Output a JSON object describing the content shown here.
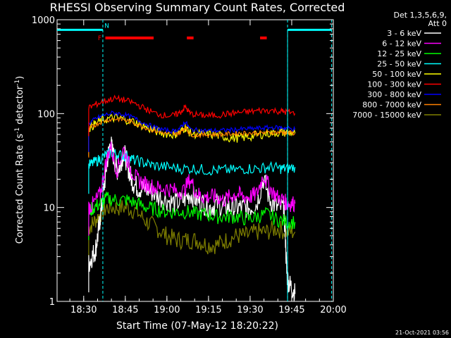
{
  "chart_data": {
    "type": "line",
    "title": "RHESSI Observing Summary Count Rates, Corrected",
    "xlabel": "Start Time (07-May-12 18:20:22)",
    "ylabel_parts": [
      "Corrected Count Rate (s",
      "-1",
      " detector",
      "-1",
      ")"
    ],
    "yscale": "log",
    "xlim": [
      18.34,
      20.0
    ],
    "ylim": [
      1,
      1000
    ],
    "x_ticks": [
      {
        "value": 18.5,
        "label": "18:30"
      },
      {
        "value": 18.75,
        "label": "18:45"
      },
      {
        "value": 19.0,
        "label": "19:00"
      },
      {
        "value": 19.25,
        "label": "19:15"
      },
      {
        "value": 19.5,
        "label": "19:30"
      },
      {
        "value": 19.75,
        "label": "19:45"
      },
      {
        "value": 20.0,
        "label": "20:00"
      }
    ],
    "y_ticks": [
      {
        "value": 1,
        "label": "1"
      },
      {
        "value": 10,
        "label": "10"
      },
      {
        "value": 100,
        "label": "100"
      },
      {
        "value": 1000,
        "label": "1000"
      }
    ],
    "legend_header": [
      "Det 1,3,5,6,9,",
      "Att 0"
    ],
    "annotations": {
      "flare_flag": "F",
      "night_flag": "N",
      "timestamp": "21-Oct-2021 03:56"
    },
    "day_night": {
      "color": "#00ffff",
      "level": 780,
      "segments": [
        [
          18.34,
          18.615
        ],
        [
          19.725,
          19.99
        ]
      ],
      "transitions": [
        18.615,
        19.725,
        19.99
      ]
    },
    "flare_bars": {
      "color": "#ff0000",
      "level": 640,
      "segments": [
        [
          18.63,
          18.92
        ],
        [
          19.12,
          19.16
        ],
        [
          19.56,
          19.6
        ]
      ]
    },
    "series": [
      {
        "name": "3 - 6 keV",
        "color": "#ffffff",
        "x": [
          18.53,
          18.55,
          18.57,
          18.585,
          18.6,
          18.62,
          18.64,
          18.66,
          18.68,
          18.7,
          18.72,
          18.74,
          18.76,
          18.78,
          18.8,
          18.83,
          18.86,
          18.9,
          18.95,
          19.0,
          19.05,
          19.1,
          19.14,
          19.18,
          19.22,
          19.26,
          19.3,
          19.34,
          19.38,
          19.42,
          19.46,
          19.5,
          19.54,
          19.58,
          19.62,
          19.66,
          19.7,
          19.71,
          19.72,
          19.73,
          19.75,
          19.77
        ],
        "y": [
          2.5,
          3,
          3.5,
          5,
          8,
          15,
          30,
          50,
          35,
          25,
          28,
          40,
          30,
          22,
          18,
          16,
          16,
          15,
          13,
          12,
          11,
          12,
          14,
          12,
          11,
          10,
          11,
          10,
          10,
          10,
          10,
          10,
          11,
          20,
          12,
          10,
          10,
          6,
          2,
          1.6,
          1.4,
          1.2
        ]
      },
      {
        "name": "6 - 12 keV",
        "color": "#ff00ff",
        "x": [
          18.53,
          18.56,
          18.6,
          18.63,
          18.66,
          18.7,
          18.74,
          18.78,
          18.82,
          18.86,
          18.9,
          18.95,
          19.0,
          19.05,
          19.1,
          19.14,
          19.18,
          19.22,
          19.26,
          19.3,
          19.34,
          19.38,
          19.42,
          19.46,
          19.5,
          19.54,
          19.58,
          19.62,
          19.66,
          19.7,
          19.72,
          19.74,
          19.77
        ],
        "y": [
          10,
          11,
          14,
          28,
          45,
          25,
          42,
          26,
          20,
          18,
          17,
          16,
          16,
          15,
          15,
          20,
          14,
          13,
          13,
          13,
          12,
          13,
          14,
          13,
          13,
          14,
          22,
          16,
          13,
          12,
          11,
          11,
          11
        ]
      },
      {
        "name": "12 - 25 keV",
        "color": "#00ff00",
        "x": [
          18.53,
          18.56,
          18.6,
          18.64,
          18.7,
          18.76,
          18.82,
          18.88,
          18.94,
          19.0,
          19.06,
          19.12,
          19.18,
          19.24,
          19.3,
          19.36,
          19.42,
          19.48,
          19.54,
          19.6,
          19.66,
          19.72,
          19.77
        ],
        "y": [
          9,
          10,
          11,
          12.5,
          12,
          12,
          11,
          10,
          9.5,
          9,
          9,
          9,
          8.5,
          8.5,
          8,
          8,
          8,
          7.5,
          8,
          8.5,
          7.5,
          7,
          7
        ]
      },
      {
        "name": "25 - 50 keV",
        "color": "#00ffff",
        "x": [
          18.53,
          18.56,
          18.6,
          18.64,
          18.68,
          18.72,
          18.76,
          18.8,
          18.86,
          18.92,
          19.0,
          19.08,
          19.16,
          19.24,
          19.32,
          19.4,
          19.48,
          19.56,
          19.62,
          19.68,
          19.72,
          19.77
        ],
        "y": [
          28,
          30,
          33,
          37,
          38,
          36,
          35,
          32,
          30,
          28,
          27,
          26,
          26,
          25,
          25,
          25,
          26,
          26,
          27,
          26,
          26,
          27
        ]
      },
      {
        "name": "50 - 100 keV",
        "color": "#ffff00",
        "x": [
          18.53,
          18.57,
          18.62,
          18.68,
          18.74,
          18.8,
          18.86,
          18.92,
          18.98,
          19.04,
          19.08,
          19.11,
          19.14,
          19.2,
          19.26,
          19.32,
          19.38,
          19.44,
          19.5,
          19.56,
          19.62,
          19.68,
          19.72,
          19.77
        ],
        "y": [
          70,
          78,
          86,
          90,
          88,
          82,
          74,
          66,
          62,
          60,
          63,
          72,
          62,
          60,
          60,
          58,
          55,
          55,
          57,
          60,
          62,
          63,
          63,
          62
        ]
      },
      {
        "name": "100 - 300 keV",
        "color": "#ff0000",
        "x": [
          18.53,
          18.57,
          18.62,
          18.68,
          18.74,
          18.8,
          18.86,
          18.92,
          18.98,
          19.04,
          19.08,
          19.11,
          19.14,
          19.2,
          19.26,
          19.32,
          19.38,
          19.44,
          19.5,
          19.56,
          19.62,
          19.68,
          19.72,
          19.77
        ],
        "y": [
          115,
          125,
          135,
          145,
          140,
          130,
          115,
          102,
          96,
          95,
          103,
          118,
          100,
          96,
          95,
          97,
          100,
          103,
          105,
          108,
          108,
          106,
          104,
          100
        ]
      },
      {
        "name": "300 - 800 keV",
        "color": "#0000ff",
        "x": [
          18.53,
          18.57,
          18.62,
          18.68,
          18.74,
          18.8,
          18.86,
          18.92,
          18.98,
          19.04,
          19.08,
          19.11,
          19.14,
          19.2,
          19.26,
          19.32,
          19.38,
          19.44,
          19.5,
          19.56,
          19.62,
          19.68,
          19.72,
          19.77
        ],
        "y": [
          78,
          88,
          96,
          102,
          98,
          90,
          80,
          72,
          67,
          65,
          70,
          82,
          68,
          66,
          66,
          66,
          67,
          68,
          69,
          70,
          71,
          71,
          70,
          68
        ]
      },
      {
        "name": "800 - 7000 keV",
        "color": "#ff8000",
        "x": [
          18.53,
          18.57,
          18.62,
          18.68,
          18.74,
          18.8,
          18.86,
          18.92,
          18.98,
          19.04,
          19.08,
          19.11,
          19.14,
          19.2,
          19.26,
          19.32,
          19.38,
          19.44,
          19.5,
          19.56,
          19.62,
          19.68,
          19.72,
          19.77
        ],
        "y": [
          68,
          76,
          84,
          88,
          86,
          80,
          72,
          66,
          62,
          60,
          63,
          72,
          60,
          59,
          60,
          60,
          61,
          62,
          62,
          62,
          63,
          63,
          63,
          62
        ]
      },
      {
        "name": "7000 - 15000 keV",
        "color": "#808000",
        "x": [
          18.53,
          18.56,
          18.6,
          18.64,
          18.7,
          18.76,
          18.82,
          18.88,
          18.94,
          19.0,
          19.06,
          19.12,
          19.18,
          19.24,
          19.3,
          19.36,
          19.42,
          19.48,
          19.54,
          19.6,
          19.66,
          19.72,
          19.77
        ],
        "y": [
          6,
          7,
          8.5,
          10,
          10,
          10,
          9,
          7,
          6,
          5,
          4.5,
          4.5,
          4.5,
          4,
          4,
          4.5,
          5,
          5,
          5.5,
          5.5,
          6,
          5.5,
          5.5
        ]
      }
    ]
  }
}
